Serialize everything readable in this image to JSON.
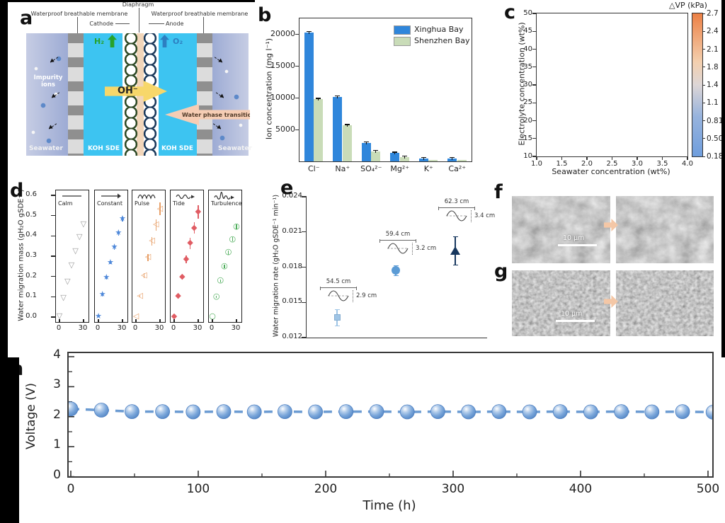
{
  "figure": {
    "panel_labels": {
      "a": "a",
      "b": "b",
      "c": "c",
      "d": "d",
      "e": "e",
      "f": "f",
      "g": "g",
      "h": "h"
    }
  },
  "panel_a": {
    "diaphragm": "Diaphragm",
    "membrane_left": "Waterproof breathable membrane",
    "membrane_right": "Waterproof breathable membrane",
    "cathode": "Cathode",
    "anode": "Anode",
    "h2": "H₂",
    "o2": "O₂",
    "impurity_ions": "Impurity ions",
    "oh": "OH⁻",
    "water_phase_transition": "Water phase transition",
    "seawater_left": "Seawater",
    "seawater_right": "Seawater",
    "koh_sde_left": "KOH SDE",
    "koh_sde_right": "KOH SDE",
    "colors": {
      "seawater": "#a9b4d6",
      "koh_sde": "#3dc4f1",
      "diaphragm": "#f2d6ba",
      "oh_arrow": "#f7d76a",
      "transition_arrow": "#f6cdb4",
      "h2_green": "#27a22b",
      "o2_blue": "#2d7fc1"
    }
  },
  "chart_data": [
    {
      "id": "b",
      "type": "bar",
      "categories": [
        "Cl⁻",
        "Na⁺",
        "SO₄²⁻",
        "Mg²⁺",
        "K⁺",
        "Ca²⁺"
      ],
      "series": [
        {
          "name": "Xinghua Bay",
          "color": "#2f86db",
          "values": [
            20300,
            10150,
            2900,
            1300,
            450,
            450
          ]
        },
        {
          "name": "Shenzhen Bay",
          "color": "#c9dcb8",
          "values": [
            9800,
            5650,
            1600,
            700,
            280,
            200
          ]
        }
      ],
      "ylabel": "Ion concentration (mg l⁻¹)",
      "yticks": [
        5000,
        10000,
        15000,
        20000
      ],
      "ylim": [
        0,
        22500
      ],
      "legend_position": "top-right"
    },
    {
      "id": "c",
      "type": "heatmap",
      "xlabel": "Seawater concentration (wt%)",
      "ylabel": "Electrolyte concentration (wt%)",
      "xticks": [
        "1.0",
        "1.5",
        "2.0",
        "2.5",
        "3.0",
        "3.5",
        "4.0"
      ],
      "yticks": [
        10,
        15,
        20,
        25,
        30,
        35,
        40,
        45,
        50
      ],
      "xlim": [
        1.0,
        4.0
      ],
      "ylim": [
        10,
        50
      ],
      "colorbar": {
        "title": "△VP (kPa)",
        "ticks": [
          "2.7",
          "2.4",
          "2.1",
          "1.8",
          "1.4",
          "1.1",
          "0.81",
          "0.50",
          "0.18"
        ]
      },
      "gradient": {
        "low": "#6f9edd",
        "mid": "#efe0d2",
        "high": "#ec8045",
        "orientation": "vertical",
        "white_band_at_wt_pct": 32
      }
    },
    {
      "id": "d",
      "type": "scatter-multi",
      "ylabel": "Water migration mass (gH₂O gSDE⁻¹)",
      "yticks": [
        0.0,
        0.1,
        0.2,
        0.3,
        0.4,
        0.5,
        0.6
      ],
      "x": [
        0,
        5,
        10,
        15,
        20,
        25,
        30
      ],
      "xticks": [
        0,
        30
      ],
      "panels": [
        {
          "name": "Calm",
          "icon": "calm-flat-line",
          "marker": "▽",
          "color": "#9a9a9a",
          "values": [
            0.0,
            0.09,
            0.17,
            0.25,
            0.32,
            0.39,
            0.45
          ],
          "err": [
            0,
            0,
            0,
            0,
            0,
            0,
            0
          ]
        },
        {
          "name": "Constant",
          "icon": "constant-arrow",
          "marker": "★",
          "color": "#4d87d9",
          "values": [
            0.0,
            0.105,
            0.19,
            0.265,
            0.34,
            0.41,
            0.48
          ],
          "err": [
            0,
            0.006,
            0.008,
            0.008,
            0.012,
            0.012,
            0.012
          ]
        },
        {
          "name": "Pulse",
          "icon": "pulse-wave",
          "marker": "◁",
          "color": "#e8a069",
          "values": [
            0.0,
            0.1,
            0.2,
            0.29,
            0.37,
            0.45,
            0.53
          ],
          "err": [
            0,
            0.006,
            0.012,
            0.018,
            0.02,
            0.028,
            0.032
          ]
        },
        {
          "name": "Tide",
          "icon": "tide-wave",
          "marker": "◆",
          "color": "#e05c63",
          "values": [
            0.0,
            0.1,
            0.195,
            0.28,
            0.36,
            0.435,
            0.515
          ],
          "err": [
            0,
            0.006,
            0.012,
            0.02,
            0.028,
            0.028,
            0.032
          ]
        },
        {
          "name": "Turbulence",
          "icon": "turbulence-wave",
          "marker": "○",
          "color": "#4fae5c",
          "values": [
            0.0,
            0.095,
            0.175,
            0.245,
            0.315,
            0.38,
            0.44
          ],
          "err": [
            0,
            0.006,
            0.008,
            0.008,
            0.01,
            0.01,
            0.012
          ]
        }
      ]
    },
    {
      "id": "e",
      "type": "scatter",
      "ylabel": "Water migration rate (gH₂O gSDE⁻¹ min⁻¹)",
      "yticks": [
        "0.012",
        "0.015",
        "0.018",
        "0.021",
        "0.024"
      ],
      "ylim": [
        0.012,
        0.024
      ],
      "points": [
        {
          "y": 0.0137,
          "err": 0.0007,
          "marker": "square",
          "color": "#9fc5e6",
          "wavelength": "54.5 cm",
          "amplitude": "2.9 cm"
        },
        {
          "y": 0.0177,
          "err": 0.0004,
          "marker": "circle",
          "color": "#5b9bd5",
          "wavelength": "59.4 cm",
          "amplitude": "3.2 cm"
        },
        {
          "y": 0.0194,
          "err": 0.0012,
          "marker": "triangle",
          "color": "#17375e",
          "wavelength": "62.3 cm",
          "amplitude": "3.4 cm"
        }
      ]
    },
    {
      "id": "h",
      "type": "line",
      "xlabel": "Time (h)",
      "ylabel": "Voltage (V)",
      "xticks": [
        0,
        100,
        200,
        300,
        400,
        500
      ],
      "yticks": [
        0,
        1,
        2,
        3,
        4
      ],
      "xlim": [
        0,
        505
      ],
      "ylim": [
        0,
        4
      ],
      "line_color": "#6b9bd2",
      "marker": "sphere",
      "x": [
        0,
        24,
        48,
        72,
        96,
        120,
        144,
        168,
        192,
        216,
        240,
        264,
        288,
        312,
        336,
        360,
        384,
        408,
        432,
        456,
        480,
        504
      ],
      "y": [
        2.26,
        2.22,
        2.17,
        2.17,
        2.16,
        2.17,
        2.16,
        2.17,
        2.16,
        2.17,
        2.17,
        2.16,
        2.17,
        2.16,
        2.17,
        2.16,
        2.17,
        2.16,
        2.17,
        2.16,
        2.17,
        2.15
      ]
    }
  ],
  "panel_f": {
    "scale_bar": "10 μm"
  },
  "panel_g": {
    "scale_bar": "10 μm"
  }
}
